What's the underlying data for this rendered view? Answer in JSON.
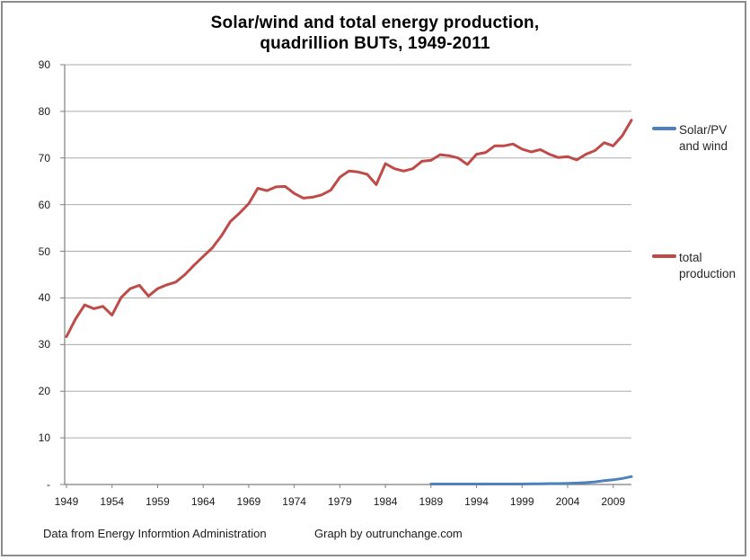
{
  "title": {
    "line1": "Solar/wind and total energy production,",
    "line2": "quadrillion BUTs, 1949-2011"
  },
  "footer": {
    "source": "Data from Energy Informtion Administration",
    "credit": "Graph by outrunchange.com"
  },
  "legend": {
    "entries": [
      {
        "label_line1": "Solar/PV",
        "label_line2": "and wind",
        "color": "#4F81BD"
      },
      {
        "label_line1": "total",
        "label_line2": "production",
        "color": "#BE4B48"
      }
    ]
  },
  "colors": {
    "solar_wind_line": "#4F81BD",
    "total_line": "#BE4B48",
    "gridline": "#ABABAB",
    "axis": "#7F7F7F",
    "frame_border": "#8C8C8C",
    "tick_text": "#1A1A1A"
  },
  "chart_data": {
    "type": "line",
    "title": "Solar/wind and total energy production, quadrillion BUTs, 1949-2011",
    "xlabel": "",
    "ylabel": "",
    "x_range": [
      1949,
      2011
    ],
    "ylim": [
      0,
      90
    ],
    "ytick_interval": 10,
    "ytick_labels": [
      "-",
      "10",
      "20",
      "30",
      "40",
      "50",
      "60",
      "70",
      "80",
      "90"
    ],
    "xticks": [
      1949,
      1954,
      1959,
      1964,
      1969,
      1974,
      1979,
      1984,
      1989,
      1994,
      1999,
      2004,
      2009
    ],
    "grid": "horizontal",
    "legend_position": "right",
    "series": [
      {
        "name": "Solar/PV and wind",
        "color": "#4F81BD",
        "start_year": 1989,
        "x_step": 1,
        "values": [
          0.1,
          0.1,
          0.1,
          0.1,
          0.1,
          0.1,
          0.1,
          0.1,
          0.1,
          0.1,
          0.1,
          0.15,
          0.15,
          0.2,
          0.2,
          0.25,
          0.3,
          0.4,
          0.55,
          0.8,
          1.0,
          1.3,
          1.7
        ]
      },
      {
        "name": "total production",
        "color": "#BE4B48",
        "start_year": 1949,
        "x_step": 1,
        "values": [
          31.7,
          35.5,
          38.5,
          37.7,
          38.2,
          36.3,
          40.1,
          42.0,
          42.7,
          40.4,
          42.0,
          42.8,
          43.4,
          45.0,
          47.0,
          48.9,
          50.7,
          53.3,
          56.4,
          58.2,
          60.2,
          63.5,
          63.0,
          63.8,
          63.9,
          62.4,
          61.4,
          61.6,
          62.1,
          63.1,
          65.9,
          67.2,
          67.0,
          66.5,
          64.3,
          68.8,
          67.7,
          67.2,
          67.7,
          69.3,
          69.5,
          70.7,
          70.5,
          70.0,
          68.6,
          70.8,
          71.2,
          72.6,
          72.6,
          73.0,
          71.9,
          71.3,
          71.8,
          70.8,
          70.1,
          70.3,
          69.6,
          70.8,
          71.6,
          73.3,
          72.6,
          74.8,
          78.1
        ]
      }
    ]
  }
}
